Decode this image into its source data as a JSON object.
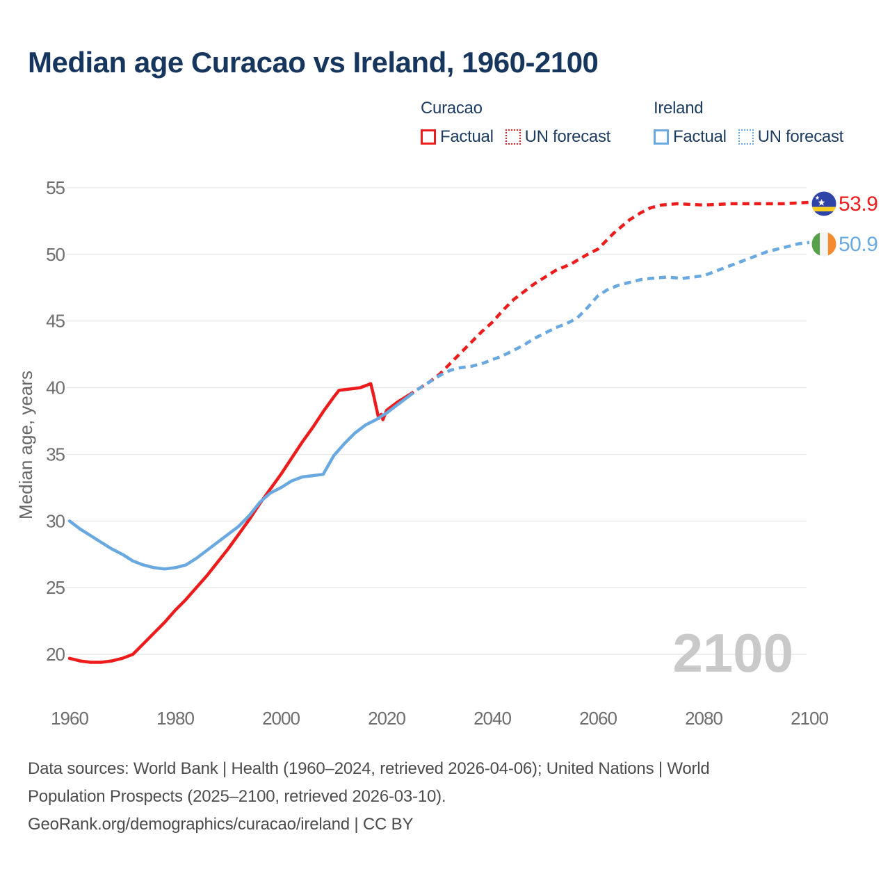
{
  "title": "Median age Curacao vs Ireland, 1960-2100",
  "legend": {
    "groups": [
      {
        "name": "Curacao",
        "color": "#ed1c1c",
        "items": [
          {
            "label": "Factual",
            "style": "solid"
          },
          {
            "label": "UN forecast",
            "style": "dotted"
          }
        ]
      },
      {
        "name": "Ireland",
        "color": "#6aa9e0",
        "items": [
          {
            "label": "Factual",
            "style": "solid"
          },
          {
            "label": "UN forecast",
            "style": "dotted"
          }
        ]
      }
    ]
  },
  "watermark": "2100",
  "footer": {
    "line1": "Data sources: World Bank | Health (1960–2024, retrieved 2026-04-06); United Nations | World",
    "line2": "Population Prospects (2025–2100, retrieved 2026-03-10).",
    "line3": "GeoRank.org/demographics/curacao/ireland | CC BY"
  },
  "end_labels": [
    {
      "country": "Curacao",
      "value": "53.9",
      "color": "#ed1c1c",
      "flag": "curacao-flag-icon"
    },
    {
      "country": "Ireland",
      "value": "50.9",
      "color": "#6aa9e0",
      "flag": "ireland-flag-icon"
    }
  ],
  "colors": {
    "grid": "#e9e9e9",
    "tick_label": "#6e6e6e",
    "axis_title": "#666666",
    "watermark": "#c9c9c9",
    "curacao_flag_blue": "#2f44a8",
    "curacao_flag_yellow": "#f5d020",
    "ireland_flag_green": "#58a14b",
    "ireland_flag_white": "#f4f4f2",
    "ireland_flag_orange": "#f58b2e"
  },
  "chart_data": {
    "type": "line",
    "title": "Median age Curacao vs Ireland, 1960-2100",
    "xlabel": "",
    "ylabel": "Median age, years",
    "xlim": [
      1960,
      2100
    ],
    "ylim": [
      20,
      55
    ],
    "x_ticks": [
      1960,
      1980,
      2000,
      2020,
      2040,
      2060,
      2080,
      2100
    ],
    "y_ticks": [
      20,
      25,
      30,
      35,
      40,
      45,
      50,
      55
    ],
    "grid": "horizontal",
    "legend_position": "top-right",
    "series": [
      {
        "name": "Curacao Factual",
        "style": "solid",
        "color": "#ed1c1c",
        "points": [
          [
            1960,
            19.7
          ],
          [
            1962,
            19.5
          ],
          [
            1964,
            19.4
          ],
          [
            1966,
            19.4
          ],
          [
            1968,
            19.5
          ],
          [
            1970,
            19.7
          ],
          [
            1972,
            20.0
          ],
          [
            1974,
            20.8
          ],
          [
            1976,
            21.6
          ],
          [
            1978,
            22.4
          ],
          [
            1980,
            23.3
          ],
          [
            1982,
            24.1
          ],
          [
            1984,
            25.0
          ],
          [
            1986,
            25.9
          ],
          [
            1988,
            26.9
          ],
          [
            1990,
            27.9
          ],
          [
            1992,
            29.0
          ],
          [
            1994,
            30.1
          ],
          [
            1996,
            31.3
          ],
          [
            1998,
            32.4
          ],
          [
            2000,
            33.5
          ],
          [
            2002,
            34.7
          ],
          [
            2004,
            35.9
          ],
          [
            2006,
            37.0
          ],
          [
            2008,
            38.2
          ],
          [
            2010,
            39.3
          ],
          [
            2011,
            39.8
          ],
          [
            2013,
            39.9
          ],
          [
            2015,
            40.0
          ],
          [
            2017,
            40.3
          ],
          [
            2017.5,
            39.5
          ],
          [
            2018.5,
            37.7
          ],
          [
            2019,
            38.0
          ],
          [
            2019.3,
            37.6
          ],
          [
            2020,
            38.3
          ],
          [
            2022,
            38.9
          ],
          [
            2024,
            39.4
          ]
        ]
      },
      {
        "name": "Curacao UN forecast",
        "style": "dashed",
        "color": "#ed1c1c",
        "points": [
          [
            2024,
            39.4
          ],
          [
            2026,
            39.9
          ],
          [
            2028,
            40.4
          ],
          [
            2030,
            41.0
          ],
          [
            2032,
            41.8
          ],
          [
            2034,
            42.6
          ],
          [
            2036,
            43.4
          ],
          [
            2038,
            44.2
          ],
          [
            2040,
            44.9
          ],
          [
            2042,
            45.8
          ],
          [
            2044,
            46.6
          ],
          [
            2046,
            47.2
          ],
          [
            2048,
            47.8
          ],
          [
            2050,
            48.3
          ],
          [
            2052,
            48.8
          ],
          [
            2055,
            49.3
          ],
          [
            2058,
            50.0
          ],
          [
            2060,
            50.4
          ],
          [
            2063,
            51.6
          ],
          [
            2066,
            52.6
          ],
          [
            2068,
            53.1
          ],
          [
            2070,
            53.5
          ],
          [
            2072,
            53.7
          ],
          [
            2075,
            53.8
          ],
          [
            2080,
            53.7
          ],
          [
            2085,
            53.8
          ],
          [
            2090,
            53.8
          ],
          [
            2095,
            53.8
          ],
          [
            2100,
            53.9
          ]
        ]
      },
      {
        "name": "Ireland Factual",
        "style": "solid",
        "color": "#6aa9e0",
        "points": [
          [
            1960,
            30.0
          ],
          [
            1962,
            29.4
          ],
          [
            1964,
            28.9
          ],
          [
            1966,
            28.4
          ],
          [
            1968,
            27.9
          ],
          [
            1970,
            27.5
          ],
          [
            1972,
            27.0
          ],
          [
            1974,
            26.7
          ],
          [
            1976,
            26.5
          ],
          [
            1978,
            26.4
          ],
          [
            1980,
            26.5
          ],
          [
            1982,
            26.7
          ],
          [
            1984,
            27.2
          ],
          [
            1986,
            27.8
          ],
          [
            1988,
            28.4
          ],
          [
            1990,
            29.0
          ],
          [
            1992,
            29.6
          ],
          [
            1994,
            30.4
          ],
          [
            1996,
            31.4
          ],
          [
            1998,
            32.1
          ],
          [
            2000,
            32.5
          ],
          [
            2002,
            33.0
          ],
          [
            2004,
            33.3
          ],
          [
            2006,
            33.4
          ],
          [
            2008,
            33.5
          ],
          [
            2010,
            34.9
          ],
          [
            2012,
            35.8
          ],
          [
            2014,
            36.6
          ],
          [
            2016,
            37.2
          ],
          [
            2018,
            37.6
          ],
          [
            2020,
            38.1
          ],
          [
            2022,
            38.7
          ],
          [
            2024,
            39.3
          ]
        ]
      },
      {
        "name": "Ireland UN forecast",
        "style": "dashed",
        "color": "#6aa9e0",
        "points": [
          [
            2024,
            39.3
          ],
          [
            2026,
            39.9
          ],
          [
            2028,
            40.4
          ],
          [
            2030,
            40.9
          ],
          [
            2032,
            41.3
          ],
          [
            2034,
            41.5
          ],
          [
            2036,
            41.6
          ],
          [
            2038,
            41.8
          ],
          [
            2040,
            42.1
          ],
          [
            2042,
            42.4
          ],
          [
            2044,
            42.8
          ],
          [
            2046,
            43.2
          ],
          [
            2048,
            43.7
          ],
          [
            2050,
            44.1
          ],
          [
            2052,
            44.5
          ],
          [
            2054,
            44.8
          ],
          [
            2056,
            45.2
          ],
          [
            2058,
            46.0
          ],
          [
            2060,
            46.9
          ],
          [
            2062,
            47.4
          ],
          [
            2064,
            47.7
          ],
          [
            2066,
            47.9
          ],
          [
            2068,
            48.1
          ],
          [
            2070,
            48.2
          ],
          [
            2073,
            48.3
          ],
          [
            2076,
            48.2
          ],
          [
            2078,
            48.3
          ],
          [
            2080,
            48.4
          ],
          [
            2082,
            48.7
          ],
          [
            2084,
            49.0
          ],
          [
            2086,
            49.3
          ],
          [
            2088,
            49.6
          ],
          [
            2090,
            49.9
          ],
          [
            2092,
            50.2
          ],
          [
            2094,
            50.4
          ],
          [
            2096,
            50.6
          ],
          [
            2098,
            50.8
          ],
          [
            2100,
            50.9
          ]
        ]
      }
    ]
  }
}
